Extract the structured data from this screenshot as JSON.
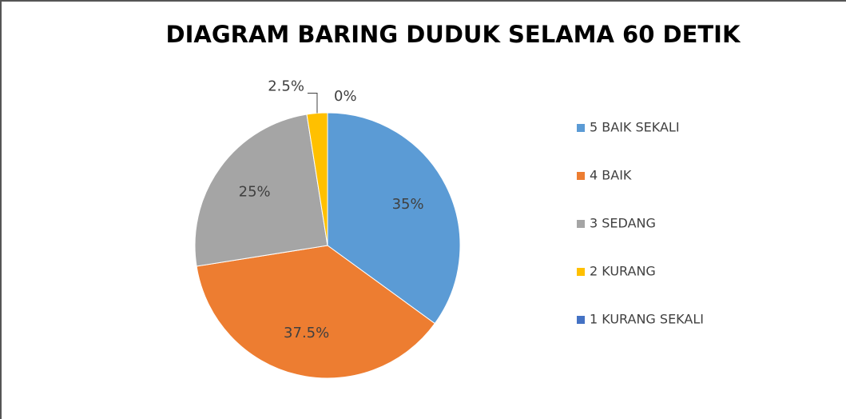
{
  "chart_data": {
    "type": "pie",
    "title": "DIAGRAM BARING DUDUK SELAMA 60 DETIK",
    "categories": [
      "5 BAIK SEKALI",
      "4 BAIK",
      "3 SEDANG",
      "2 KURANG",
      "1 KURANG SEKALI"
    ],
    "values": [
      35,
      37.5,
      25,
      2.5,
      0
    ],
    "value_labels": [
      "35%",
      "37.5%",
      "25%",
      "2.5%",
      "0%"
    ],
    "colors": [
      "#5b9bd5",
      "#ed7d31",
      "#a5a5a5",
      "#ffc000",
      "#4472c4"
    ],
    "legend": "right"
  }
}
